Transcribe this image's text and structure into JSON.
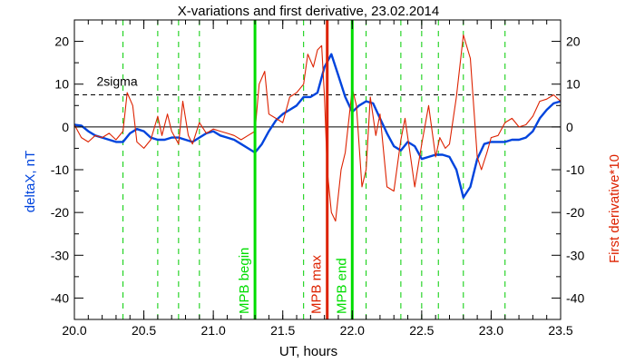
{
  "chart_data": {
    "type": "line",
    "title": "X-variations and first derivative, 23.02.2014",
    "xlabel": "UT, hours",
    "ylabel_left": "deltaX, nT",
    "ylabel_right": "First derivative*10",
    "xlim": [
      20.0,
      23.5
    ],
    "ylim": [
      -45,
      25
    ],
    "x_ticks": [
      20.0,
      20.5,
      21.0,
      21.5,
      22.0,
      22.5,
      23.0,
      23.5
    ],
    "x_tick_labels": [
      "20.0",
      "20.5",
      "21.0",
      "21.5",
      "22.0",
      "22.5",
      "23.0",
      "23.5"
    ],
    "y_ticks": [
      20,
      10,
      0,
      -10,
      -20,
      -30,
      -40
    ],
    "y_tick_labels": [
      "20",
      "10",
      "0",
      "-10",
      "-20",
      "-30",
      "-40"
    ],
    "threshold": {
      "label": "2sigma",
      "value": 7.5
    },
    "zero_line": 0,
    "dashed_markers_x": [
      20.35,
      20.6,
      20.75,
      20.9,
      21.65,
      22.1,
      22.35,
      22.5,
      22.62,
      22.8,
      23.1
    ],
    "markers": [
      {
        "label": "MPB begin",
        "x": 21.3,
        "color": "#00dd00"
      },
      {
        "label": "MPB max",
        "x": 21.82,
        "color": "#dd2200"
      },
      {
        "label": "MPB end",
        "x": 22.0,
        "color": "#00dd00"
      }
    ],
    "colors": {
      "deltaX": "#0044dd",
      "derivative": "#dd2200",
      "dashed_markers": "#00cc00",
      "axes": "#000000"
    },
    "series": [
      {
        "name": "deltaX, nT",
        "axis": "left",
        "color": "#0044dd",
        "x": [
          20.0,
          20.05,
          20.1,
          20.15,
          20.2,
          20.25,
          20.3,
          20.35,
          20.4,
          20.45,
          20.5,
          20.55,
          20.6,
          20.65,
          20.7,
          20.75,
          20.8,
          20.85,
          20.9,
          20.95,
          21.0,
          21.05,
          21.1,
          21.15,
          21.2,
          21.25,
          21.3,
          21.35,
          21.4,
          21.45,
          21.5,
          21.55,
          21.6,
          21.65,
          21.7,
          21.75,
          21.8,
          21.85,
          21.9,
          21.95,
          22.0,
          22.05,
          22.1,
          22.15,
          22.2,
          22.25,
          22.3,
          22.35,
          22.4,
          22.45,
          22.5,
          22.55,
          22.6,
          22.65,
          22.7,
          22.75,
          22.8,
          22.85,
          22.9,
          22.95,
          23.0,
          23.05,
          23.1,
          23.15,
          23.2,
          23.25,
          23.3,
          23.35,
          23.4,
          23.45,
          23.5
        ],
        "y": [
          0.5,
          0.3,
          -1.0,
          -2.0,
          -2.5,
          -3.0,
          -3.5,
          -3.5,
          -1.5,
          -0.5,
          -1.0,
          -2.5,
          -3.0,
          -3.0,
          -2.5,
          -2.5,
          -3.0,
          -3.5,
          -2.5,
          -1.5,
          -1.0,
          -2.0,
          -2.5,
          -3.0,
          -4.0,
          -5.0,
          -6.0,
          -4.0,
          -1.0,
          1.5,
          3.0,
          4.0,
          5.0,
          7.0,
          7.0,
          8.0,
          14.0,
          17.0,
          12.0,
          7.0,
          3.5,
          5.0,
          6.0,
          5.5,
          2.0,
          -1.5,
          -4.5,
          -5.5,
          -3.5,
          -4.5,
          -7.5,
          -7.0,
          -6.5,
          -6.5,
          -7.0,
          -10.0,
          -16.5,
          -14.0,
          -7.5,
          -4.0,
          -3.5,
          -3.5,
          -3.5,
          -3.0,
          -3.0,
          -2.5,
          -1.0,
          2.0,
          4.0,
          5.5,
          6.0
        ]
      },
      {
        "name": "First derivative*10",
        "axis": "right",
        "color": "#dd2200",
        "x": [
          20.0,
          20.05,
          20.1,
          20.15,
          20.2,
          20.25,
          20.3,
          20.35,
          20.38,
          20.42,
          20.45,
          20.5,
          20.55,
          20.6,
          20.63,
          20.67,
          20.7,
          20.75,
          20.78,
          20.82,
          20.85,
          20.9,
          20.95,
          21.0,
          21.05,
          21.1,
          21.15,
          21.2,
          21.25,
          21.3,
          21.33,
          21.37,
          21.4,
          21.45,
          21.5,
          21.55,
          21.6,
          21.65,
          21.68,
          21.72,
          21.75,
          21.78,
          21.8,
          21.82,
          21.85,
          21.88,
          21.92,
          21.95,
          22.0,
          22.03,
          22.07,
          22.1,
          22.13,
          22.17,
          22.2,
          22.25,
          22.3,
          22.35,
          22.38,
          22.42,
          22.45,
          22.5,
          22.55,
          22.6,
          22.63,
          22.67,
          22.7,
          22.75,
          22.8,
          22.85,
          22.9,
          22.93,
          22.97,
          23.0,
          23.05,
          23.1,
          23.15,
          23.2,
          23.25,
          23.3,
          23.35,
          23.4,
          23.45,
          23.5
        ],
        "y": [
          0.5,
          -2.5,
          -3.5,
          -2.0,
          -2.5,
          -1.5,
          -3.0,
          -1.0,
          8.0,
          5.0,
          -3.5,
          -5.0,
          -3.0,
          2.5,
          -2.0,
          3.0,
          -1.0,
          -4.0,
          6.0,
          -2.0,
          -4.0,
          1.0,
          -1.5,
          -0.5,
          -1.0,
          -1.5,
          -2.0,
          -3.0,
          -2.0,
          -1.0,
          10.0,
          13.0,
          3.0,
          2.0,
          1.0,
          7.0,
          8.0,
          10.0,
          17.0,
          14.0,
          18.0,
          19.0,
          7.0,
          -10.0,
          -20.0,
          -22.0,
          -10.0,
          -6.0,
          9.0,
          5.0,
          -14.0,
          -10.0,
          7.0,
          -2.0,
          3.0,
          -14.0,
          -15.0,
          -3.0,
          2.0,
          -7.0,
          -14.0,
          -4.0,
          5.0,
          -7.0,
          -2.5,
          -5.0,
          -4.0,
          7.0,
          21.5,
          16.0,
          -7.0,
          -10.0,
          -6.0,
          -2.5,
          -2.0,
          1.0,
          2.0,
          0.0,
          0.5,
          2.5,
          6.0,
          6.5,
          7.5,
          6.0
        ]
      }
    ]
  }
}
